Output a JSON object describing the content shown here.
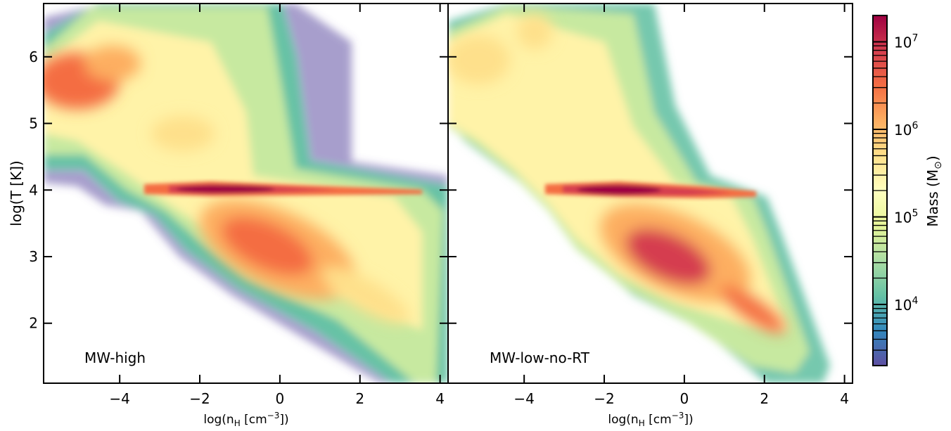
{
  "chart_data": [
    {
      "type": "heatmap",
      "panel_label": "MW-high",
      "xlabel_base": "log(n",
      "xlabel_sub": "H",
      "xlabel_unit": " [cm",
      "xlabel_sup": "−3",
      "xlabel_close": "])",
      "ylabel": "log(T [K])",
      "xlim": [
        -5.9,
        4.2
      ],
      "ylim": [
        1.1,
        6.8
      ],
      "xticks": [
        -4,
        -2,
        0,
        2,
        4
      ],
      "xtick_labels": [
        "−4",
        "−2",
        "0",
        "2",
        "4"
      ],
      "yticks": [
        2,
        3,
        4,
        5,
        6
      ],
      "ytick_labels": [
        "2",
        "3",
        "4",
        "5",
        "6"
      ],
      "peak_mass_locations": [
        {
          "x": -1.5,
          "y": 4.0,
          "level": "high"
        },
        {
          "x": -5.2,
          "y": 5.5,
          "level": "mid-high"
        },
        {
          "x": -0.2,
          "y": 3.1,
          "level": "mid-high"
        }
      ]
    },
    {
      "type": "heatmap",
      "panel_label": "MW-low-no-RT",
      "xlabel_base": "log(n",
      "xlabel_sub": "H",
      "xlabel_unit": " [cm",
      "xlabel_sup": "−3",
      "xlabel_close": "])",
      "xlim": [
        -5.9,
        4.2
      ],
      "ylim": [
        1.1,
        6.8
      ],
      "xticks": [
        -4,
        -2,
        0,
        2,
        4
      ],
      "xtick_labels": [
        "−4",
        "−2",
        "0",
        "2",
        "4"
      ],
      "peak_mass_locations": [
        {
          "x": -1.7,
          "y": 4.0,
          "level": "high"
        },
        {
          "x": -0.5,
          "y": 2.9,
          "level": "high"
        },
        {
          "x": -5.0,
          "y": 5.8,
          "level": "mid"
        }
      ]
    }
  ],
  "colorbar": {
    "label_base": "Mass (M",
    "label_sub": "⊙",
    "label_close": ")",
    "scale": "log",
    "range": [
      2000,
      20000000
    ],
    "ticks": [
      {
        "value": 10000,
        "base": "10",
        "exp": "4"
      },
      {
        "value": 100000,
        "base": "10",
        "exp": "5"
      },
      {
        "value": 1000000,
        "base": "10",
        "exp": "6"
      },
      {
        "value": 10000000,
        "base": "10",
        "exp": "7"
      }
    ],
    "colormap": [
      "#5e4fa2",
      "#3288bd",
      "#66c2a5",
      "#abdda4",
      "#e6f598",
      "#ffffbf",
      "#fee08b",
      "#fdae61",
      "#f46d43",
      "#d53e4f",
      "#9e0142"
    ]
  }
}
